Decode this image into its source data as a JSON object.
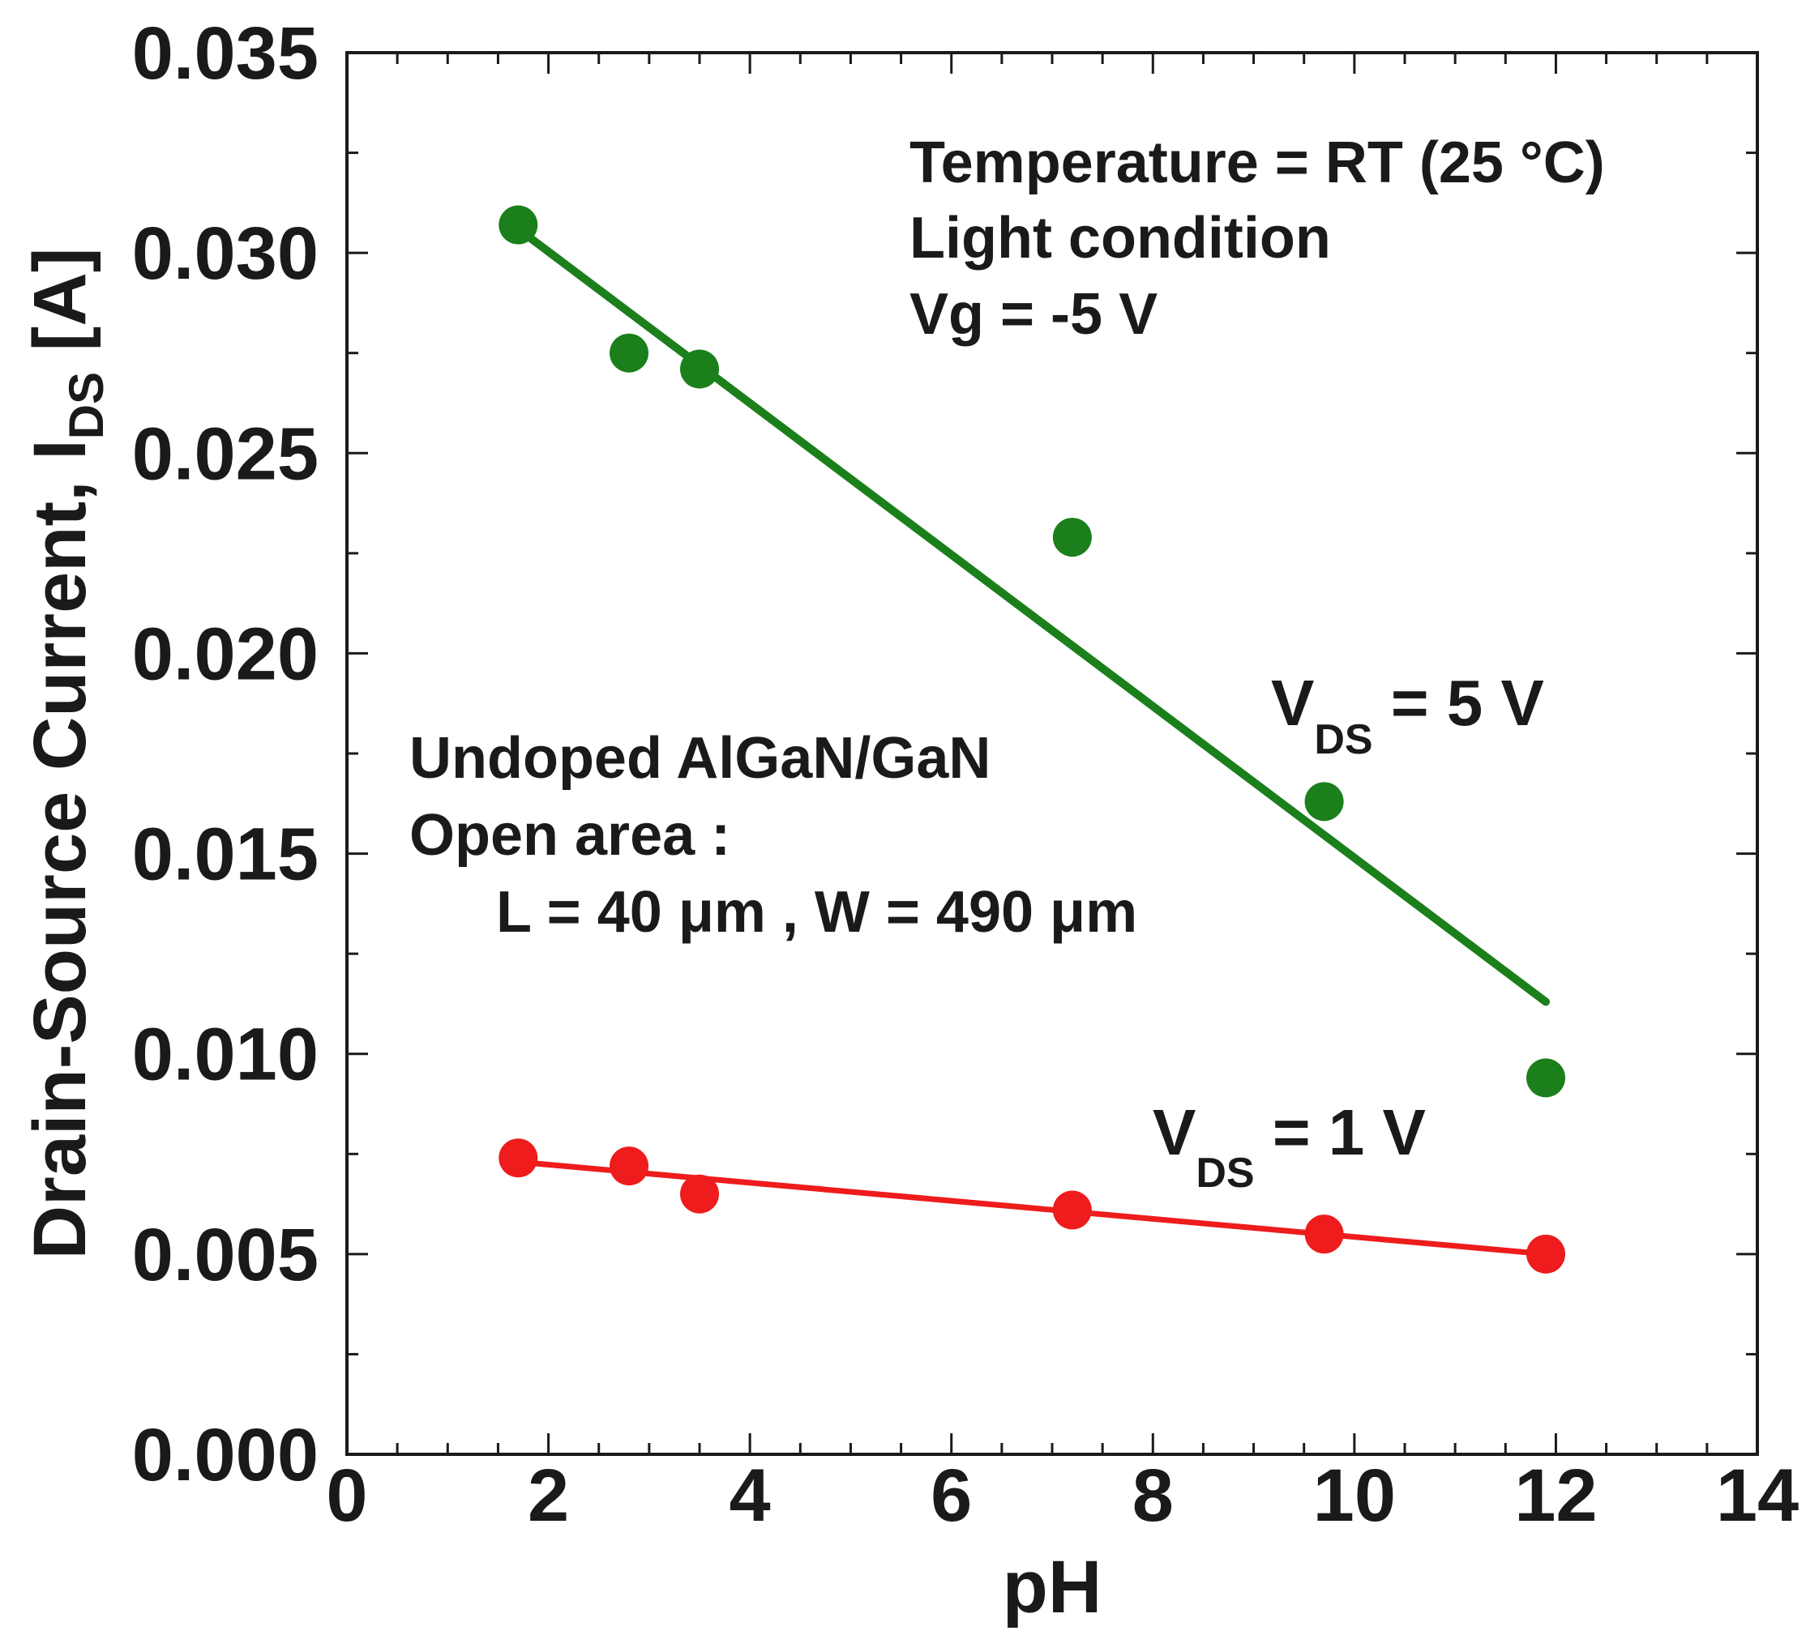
{
  "chart_data": {
    "type": "scatter",
    "xlabel": "pH",
    "ylabel": {
      "main": "Drain-Source Current, I",
      "sub": "DS",
      "unit": " [A]"
    },
    "xlim": [
      0,
      14
    ],
    "ylim": [
      0,
      0.035
    ],
    "xticks": [
      0,
      2,
      4,
      6,
      8,
      10,
      12,
      14
    ],
    "xtick_labels": [
      "0",
      "2",
      "4",
      "6",
      "8",
      "10",
      "12",
      "14"
    ],
    "yticks": [
      0,
      0.005,
      0.01,
      0.015,
      0.02,
      0.025,
      0.03,
      0.035
    ],
    "ytick_labels": [
      "0.000",
      "0.005",
      "0.010",
      "0.015",
      "0.020",
      "0.025",
      "0.030",
      "0.035"
    ],
    "x_minor_step": 0.5,
    "y_minor_step": 0.0025,
    "series": [
      {
        "name": "VDS = 5 V",
        "color": "#1b7f1b",
        "x": [
          1.7,
          2.8,
          3.5,
          7.2,
          9.7,
          11.9
        ],
        "y": [
          0.0307,
          0.0275,
          0.0271,
          0.0229,
          0.0163,
          0.0094
        ],
        "fit": {
          "x": [
            1.7,
            11.9
          ],
          "y": [
            0.0306,
            0.0113
          ]
        },
        "label": {
          "main": "V",
          "sub": "DS",
          "rest": " = 5 V"
        }
      },
      {
        "name": "VDS = 1 V",
        "color": "#ee1c1c",
        "x": [
          1.7,
          2.8,
          3.5,
          7.2,
          9.7,
          11.9
        ],
        "y": [
          0.0074,
          0.0072,
          0.0065,
          0.0061,
          0.0055,
          0.005
        ],
        "fit": {
          "x": [
            1.7,
            11.9
          ],
          "y": [
            0.0073,
            0.005
          ]
        },
        "label": {
          "main": "V",
          "sub": "DS",
          "rest": " = 1 V"
        }
      }
    ],
    "annotations": {
      "conditions": [
        "Temperature = RT (25 °C)",
        "Light condition",
        "Vg = -5 V"
      ],
      "device": [
        "Undoped AlGaN/GaN",
        "Open area :",
        "L = 40 μm , W = 490 μm"
      ]
    }
  }
}
